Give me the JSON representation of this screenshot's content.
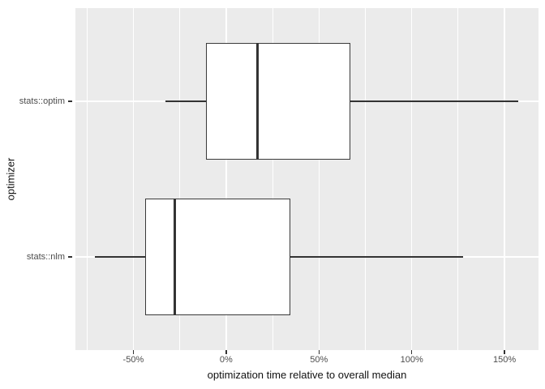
{
  "chart_data": {
    "type": "boxplot",
    "orientation": "horizontal",
    "xlabel": "optimization time relative to overall median",
    "ylabel": "optimizer",
    "xlim": [
      -81.2,
      168.3
    ],
    "x_ticks": [
      {
        "value": -50,
        "label": "-50%"
      },
      {
        "value": 0,
        "label": "0%"
      },
      {
        "value": 50,
        "label": "50%"
      },
      {
        "value": 100,
        "label": "100%"
      },
      {
        "value": 150,
        "label": "150%"
      }
    ],
    "x_minor": [
      -75,
      -25,
      25,
      75,
      125
    ],
    "categories": [
      "stats::optim",
      "stats::nlm"
    ],
    "series": [
      {
        "name": "stats::optim",
        "whisker_min": -32.5,
        "q1": -10.75,
        "median": 16.75,
        "q3": 67,
        "whisker_max": 157.5
      },
      {
        "name": "stats::nlm",
        "whisker_min": -70.5,
        "q1": -43.5,
        "median": -27.5,
        "q3": 34.5,
        "whisker_max": 127.5
      }
    ],
    "grid": "on",
    "legend": "none",
    "colors": {
      "panel_bg": "#ebebeb",
      "grid": "#ffffff",
      "box_border": "#3a3a3a",
      "box_fill": "#ffffff",
      "whisker": "#333333",
      "tick_label": "#4d4d4d",
      "axis_title": "#111111"
    }
  }
}
